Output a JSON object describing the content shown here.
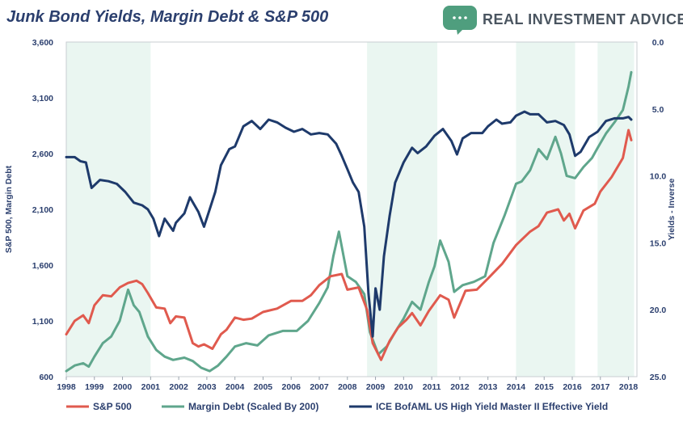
{
  "brand": {
    "name": "REAL INVESTMENT ADVICE",
    "colors": {
      "primary": "#5a6670",
      "accent": "#4f9e7e"
    },
    "logo_icon": "speech-bubble-icon"
  },
  "chart_data": {
    "type": "line",
    "title": "Junk Bond Yields, Margin Debt & S&P 500",
    "ylabel_left": "S&P 500, Margin Debt",
    "ylabel_right": "Yields - Inverse",
    "ylim_left": [
      600,
      3600
    ],
    "ylim_right": [
      25,
      0
    ],
    "yticks_left": [
      "600",
      "1,100",
      "1,600",
      "2,100",
      "2,600",
      "3,100",
      "3,600"
    ],
    "yticks_left_values": [
      600,
      1100,
      1600,
      2100,
      2600,
      3100,
      3600
    ],
    "yticks_right": [
      "0.0",
      "5.0",
      "10.0",
      "15.0",
      "20.0",
      "25.0"
    ],
    "yticks_right_values": [
      0,
      5,
      10,
      15,
      20,
      25
    ],
    "xlim": [
      1998,
      2018.3
    ],
    "xticks": [
      "1998",
      "1999",
      "2000",
      "2001",
      "2002",
      "2003",
      "2004",
      "2005",
      "2006",
      "2007",
      "2008",
      "2009",
      "2010",
      "2011",
      "2012",
      "2013",
      "2014",
      "2015",
      "2016",
      "2017",
      "2018"
    ],
    "shaded_regions": [
      [
        1998,
        2001.0
      ],
      [
        2008.7,
        2011.2
      ],
      [
        2014.0,
        2016.1
      ],
      [
        2016.9,
        2018.2
      ]
    ],
    "series": [
      {
        "name": "S&P 500",
        "color": "#e05a4e",
        "axis": "left",
        "x": [
          1998,
          1998.3,
          1998.6,
          1998.8,
          1999,
          1999.3,
          1999.6,
          1999.9,
          2000.2,
          2000.5,
          2000.7,
          2000.9,
          2001.2,
          2001.5,
          2001.7,
          2001.9,
          2002.2,
          2002.5,
          2002.7,
          2002.9,
          2003.2,
          2003.5,
          2003.7,
          2004,
          2004.3,
          2004.6,
          2005,
          2005.5,
          2006,
          2006.4,
          2006.7,
          2007,
          2007.4,
          2007.8,
          2008,
          2008.4,
          2008.7,
          2008.9,
          2009.2,
          2009.5,
          2009.8,
          2010.1,
          2010.3,
          2010.6,
          2010.9,
          2011.3,
          2011.6,
          2011.8,
          2012.2,
          2012.6,
          2013,
          2013.5,
          2014,
          2014.5,
          2014.8,
          2015.1,
          2015.5,
          2015.7,
          2015.9,
          2016.1,
          2016.4,
          2016.8,
          2017,
          2017.4,
          2017.8,
          2018,
          2018.1
        ],
        "values": [
          980,
          1100,
          1150,
          1080,
          1240,
          1330,
          1320,
          1400,
          1440,
          1460,
          1430,
          1350,
          1220,
          1210,
          1080,
          1140,
          1130,
          900,
          870,
          890,
          850,
          980,
          1020,
          1130,
          1110,
          1120,
          1180,
          1210,
          1280,
          1280,
          1330,
          1420,
          1500,
          1520,
          1380,
          1400,
          1200,
          900,
          750,
          920,
          1040,
          1110,
          1170,
          1060,
          1190,
          1330,
          1290,
          1130,
          1370,
          1380,
          1480,
          1610,
          1780,
          1900,
          1950,
          2070,
          2100,
          2000,
          2060,
          1930,
          2090,
          2150,
          2260,
          2390,
          2560,
          2810,
          2720
        ]
      },
      {
        "name": "Margin Debt (Scaled By 200)",
        "color": "#5fa68c",
        "axis": "left",
        "x": [
          1998,
          1998.3,
          1998.6,
          1998.8,
          1999,
          1999.3,
          1999.6,
          1999.9,
          2000.2,
          2000.4,
          2000.6,
          2000.9,
          2001.2,
          2001.5,
          2001.8,
          2002.2,
          2002.5,
          2002.8,
          2003.1,
          2003.4,
          2003.7,
          2004,
          2004.4,
          2004.8,
          2005.2,
          2005.7,
          2006.2,
          2006.6,
          2007,
          2007.3,
          2007.5,
          2007.7,
          2008,
          2008.3,
          2008.6,
          2008.8,
          2009.1,
          2009.4,
          2009.7,
          2010,
          2010.3,
          2010.6,
          2010.9,
          2011.1,
          2011.3,
          2011.6,
          2011.8,
          2012.1,
          2012.5,
          2012.9,
          2013.2,
          2013.6,
          2014,
          2014.2,
          2014.5,
          2014.8,
          2015.1,
          2015.4,
          2015.6,
          2015.8,
          2016.1,
          2016.4,
          2016.7,
          2016.9,
          2017.2,
          2017.5,
          2017.8,
          2018,
          2018.1
        ],
        "values": [
          650,
          700,
          720,
          690,
          780,
          900,
          960,
          1100,
          1380,
          1240,
          1180,
          960,
          840,
          780,
          750,
          770,
          740,
          680,
          650,
          700,
          780,
          870,
          900,
          880,
          970,
          1010,
          1010,
          1100,
          1260,
          1400,
          1680,
          1900,
          1500,
          1450,
          1340,
          1000,
          800,
          870,
          1000,
          1120,
          1270,
          1200,
          1450,
          1590,
          1820,
          1630,
          1360,
          1420,
          1450,
          1500,
          1800,
          2050,
          2330,
          2350,
          2450,
          2640,
          2550,
          2750,
          2600,
          2400,
          2380,
          2480,
          2560,
          2650,
          2780,
          2880,
          2990,
          3200,
          3330
        ]
      },
      {
        "name": "ICE BofAML US High Yield Master II Effective Yield",
        "color": "#1e3a6b",
        "axis": "right",
        "x": [
          1998,
          1998.3,
          1998.5,
          1998.7,
          1998.9,
          1999.2,
          1999.5,
          1999.8,
          2000.1,
          2000.4,
          2000.7,
          2000.9,
          2001.1,
          2001.3,
          2001.5,
          2001.8,
          2001.9,
          2002.2,
          2002.4,
          2002.7,
          2002.9,
          2003.1,
          2003.3,
          2003.5,
          2003.8,
          2004,
          2004.3,
          2004.6,
          2004.9,
          2005.2,
          2005.5,
          2005.8,
          2006.1,
          2006.4,
          2006.7,
          2007,
          2007.3,
          2007.6,
          2007.8,
          2008,
          2008.2,
          2008.4,
          2008.6,
          2008.75,
          2008.9,
          2009.0,
          2009.15,
          2009.3,
          2009.5,
          2009.7,
          2010,
          2010.3,
          2010.5,
          2010.8,
          2011.1,
          2011.4,
          2011.7,
          2011.9,
          2012.1,
          2012.4,
          2012.8,
          2013,
          2013.3,
          2013.5,
          2013.8,
          2014,
          2014.3,
          2014.5,
          2014.8,
          2015.1,
          2015.4,
          2015.7,
          2015.9,
          2016.1,
          2016.3,
          2016.6,
          2016.9,
          2017.2,
          2017.5,
          2017.8,
          2018,
          2018.1
        ],
        "values": [
          8.6,
          8.6,
          8.9,
          9.0,
          10.9,
          10.3,
          10.4,
          10.6,
          11.2,
          12.0,
          12.2,
          12.5,
          13.2,
          14.5,
          13.2,
          14.1,
          13.5,
          12.8,
          11.6,
          12.7,
          13.8,
          12.5,
          11.2,
          9.2,
          8.0,
          7.8,
          6.3,
          5.9,
          6.5,
          5.8,
          6.0,
          6.4,
          6.7,
          6.5,
          6.9,
          6.8,
          6.9,
          7.6,
          8.5,
          9.5,
          10.5,
          11.2,
          13.8,
          18.8,
          22.0,
          18.4,
          20.0,
          16.0,
          13.0,
          10.5,
          9.0,
          7.9,
          8.3,
          7.8,
          7.0,
          6.5,
          7.4,
          8.4,
          7.2,
          6.8,
          6.8,
          6.3,
          5.8,
          6.1,
          6.0,
          5.5,
          5.2,
          5.4,
          5.4,
          6.0,
          5.9,
          6.2,
          6.9,
          8.5,
          8.2,
          7.1,
          6.7,
          5.9,
          5.7,
          5.7,
          5.6,
          5.8
        ]
      }
    ],
    "legend_position": "bottom"
  }
}
